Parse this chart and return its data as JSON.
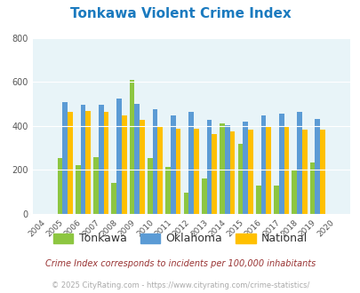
{
  "title": "Tonkawa Violent Crime Index",
  "years": [
    2004,
    2005,
    2006,
    2007,
    2008,
    2009,
    2010,
    2011,
    2012,
    2013,
    2014,
    2015,
    2016,
    2017,
    2018,
    2019,
    2020
  ],
  "tonkawa": [
    0,
    255,
    220,
    260,
    140,
    608,
    255,
    215,
    95,
    160,
    410,
    320,
    130,
    130,
    200,
    235,
    0
  ],
  "oklahoma": [
    0,
    510,
    498,
    498,
    525,
    500,
    478,
    450,
    465,
    428,
    405,
    420,
    448,
    455,
    465,
    430,
    0
  ],
  "national": [
    0,
    465,
    470,
    465,
    450,
    428,
    400,
    388,
    388,
    365,
    375,
    383,
    398,
    398,
    382,
    382,
    0
  ],
  "tonkawa_color": "#8dc641",
  "oklahoma_color": "#5b9bd5",
  "national_color": "#ffc000",
  "bg_color": "#e8f4f8",
  "ylim": [
    0,
    800
  ],
  "yticks": [
    0,
    200,
    400,
    600,
    800
  ],
  "legend_labels": [
    "Tonkawa",
    "Oklahoma",
    "National"
  ],
  "footnote1": "Crime Index corresponds to incidents per 100,000 inhabitants",
  "footnote2": "© 2025 CityRating.com - https://www.cityrating.com/crime-statistics/",
  "title_color": "#1a7abf",
  "footnote1_color": "#993333",
  "footnote2_color": "#aaaaaa",
  "legend_text_color": "#333333"
}
